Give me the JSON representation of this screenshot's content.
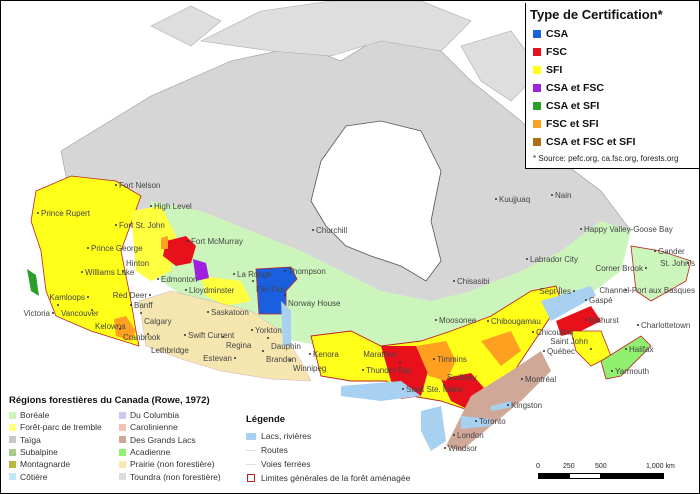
{
  "certification_legend": {
    "title": "Type de Certification*",
    "items": [
      {
        "label": "CSA",
        "color": "#1a5fe0"
      },
      {
        "label": "FSC",
        "color": "#e8101a"
      },
      {
        "label": "SFI",
        "color": "#ffff1a"
      },
      {
        "label": "CSA et FSC",
        "color": "#a020e0"
      },
      {
        "label": "CSA et SFI",
        "color": "#2aa02a"
      },
      {
        "label": "FSC et SFI",
        "color": "#ffa020"
      },
      {
        "label": "CSA et FSC et SFI",
        "color": "#a87018"
      }
    ],
    "source": "* Source: pefc.org, ca.fsc.org, forests.org"
  },
  "regions_legend": {
    "title": "Régions forestières du Canada (Rowe, 1972)",
    "items": [
      {
        "label": "Boréale",
        "color": "#ccf5bb"
      },
      {
        "label": "Forêt-parc de tremble",
        "color": "#ffff80"
      },
      {
        "label": "Taïga",
        "color": "#c8c8c8"
      },
      {
        "label": "Subalpine",
        "color": "#a8cc90"
      },
      {
        "label": "Montagnarde",
        "color": "#b8b840"
      },
      {
        "label": "Côtière",
        "color": "#c0e8f8"
      },
      {
        "label": "Du Columbia",
        "color": "#c8c8f0"
      },
      {
        "label": "Carolinienne",
        "color": "#f8c0b0"
      },
      {
        "label": "Des Grands Lacs",
        "color": "#d0a898"
      },
      {
        "label": "Acadienne",
        "color": "#90f070"
      },
      {
        "label": "Prairie (non forestière)",
        "color": "#f8e8b0"
      },
      {
        "label": "Toundra (non forestière)",
        "color": "#dcdcdc"
      }
    ]
  },
  "map_legend": {
    "title": "Légende",
    "items": [
      {
        "label": "Lacs, rivières",
        "symbol": "lake-swatch",
        "color": "#a8d0f0"
      },
      {
        "label": "Routes",
        "symbol": "road-line"
      },
      {
        "label": "Voies ferrées",
        "symbol": "rail-line"
      },
      {
        "label": "Limites générales de la forêt aménagée",
        "symbol": "outline-box",
        "color": "#c02020"
      }
    ]
  },
  "scale_bar": {
    "labels": [
      "0",
      "250",
      "500",
      "1,000 km"
    ]
  },
  "cities": [
    "Fort Nelson",
    "High Level",
    "Fort McMurray",
    "Prince Rupert",
    "Fort St. John",
    "Prince George",
    "Williams Lake",
    "Hinton",
    "Edmonton",
    "Lloydminster",
    "Red Deer",
    "Kamloops",
    "Vancouver",
    "Kelowna",
    "Banff",
    "Calgary",
    "Victoria",
    "Cranbrook",
    "Lethbridge",
    "Swift Current",
    "Regina",
    "Saskatoon",
    "La Ronge",
    "Flin Flon",
    "Thompson",
    "Norway House",
    "Churchill",
    "Yorkton",
    "Dauphin",
    "Brandon",
    "Estevan",
    "Winnipeg",
    "Kenora",
    "Thunder Bay",
    "Timmins",
    "Sault Ste. Marie",
    "Sudbury",
    "Kingston",
    "Toronto",
    "London",
    "Windsor",
    "Montréal",
    "Québec",
    "Chicoutimi",
    "Chibougamau",
    "Moosonee",
    "Chisasibi",
    "Labrador City",
    "Happy Valley-Goose Bay",
    "Gander",
    "St. John's",
    "Corner Brook",
    "Channel-Port aux Basques",
    "Sept-Îles",
    "Gaspé",
    "Bathurst",
    "Charlottetown",
    "Halifax",
    "Saint John",
    "Yarmouth",
    "Kuujjuaq",
    "Nain",
    "Marathon"
  ]
}
